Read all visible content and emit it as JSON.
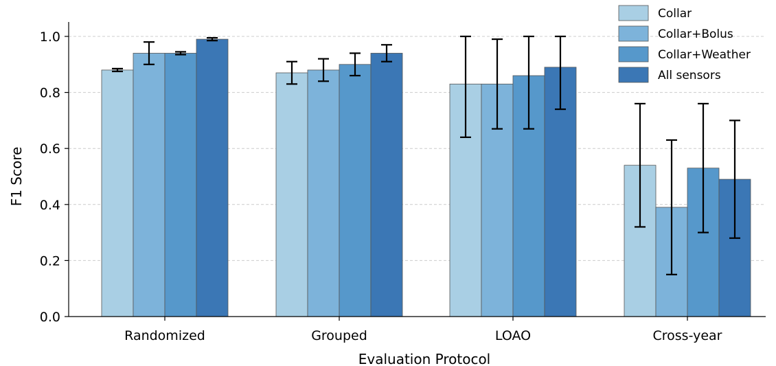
{
  "chart_data": {
    "type": "bar",
    "categories": [
      "Randomized",
      "Grouped",
      "LOAO",
      "Cross-year"
    ],
    "xlabel": "Evaluation Protocol",
    "ylabel": "F1 Score",
    "ylim": [
      0,
      1.0
    ],
    "yticks": [
      "0.0",
      "0.2",
      "0.4",
      "0.6",
      "0.8",
      "1.0"
    ],
    "grid": "horizontal dashed",
    "legend_position": "top-right",
    "series": [
      {
        "name": "Collar",
        "color": "#a9cfe4",
        "values": [
          0.88,
          0.87,
          0.83,
          0.54
        ],
        "err_low": [
          0.875,
          0.83,
          0.64,
          0.32
        ],
        "err_high": [
          0.885,
          0.91,
          1.0,
          0.76
        ]
      },
      {
        "name": "Collar+Bolus",
        "color": "#7db3da",
        "values": [
          0.94,
          0.88,
          0.83,
          0.39
        ],
        "err_low": [
          0.9,
          0.84,
          0.67,
          0.15
        ],
        "err_high": [
          0.98,
          0.92,
          0.99,
          0.63
        ]
      },
      {
        "name": "Collar+Weather",
        "color": "#5698cb",
        "values": [
          0.94,
          0.9,
          0.86,
          0.53
        ],
        "err_low": [
          0.935,
          0.86,
          0.67,
          0.3
        ],
        "err_high": [
          0.945,
          0.94,
          1.0,
          0.76
        ]
      },
      {
        "name": "All sensors",
        "color": "#3b77b5",
        "values": [
          0.99,
          0.94,
          0.89,
          0.49
        ],
        "err_low": [
          0.985,
          0.91,
          0.74,
          0.28
        ],
        "err_high": [
          0.995,
          0.97,
          1.0,
          0.7
        ]
      }
    ]
  }
}
